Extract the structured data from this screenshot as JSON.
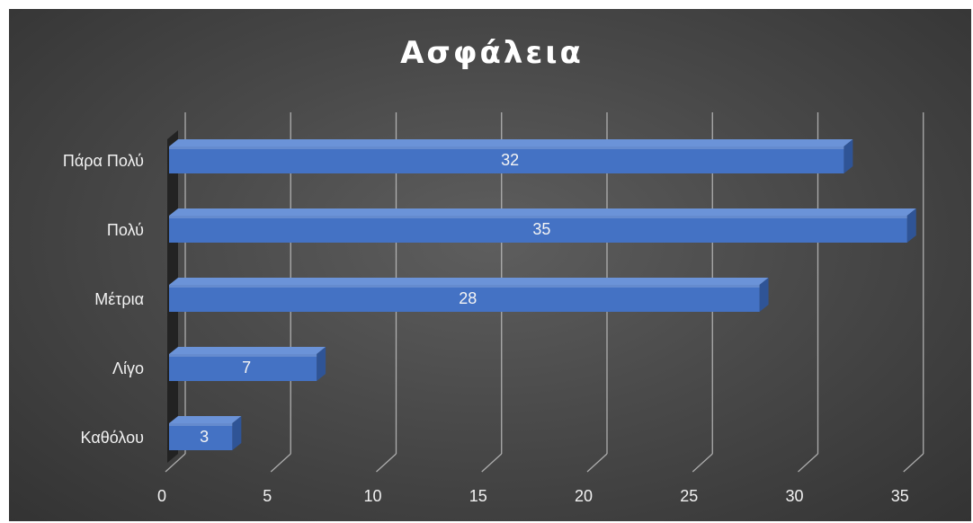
{
  "chart_data": {
    "type": "bar",
    "orientation": "horizontal",
    "title": "Ασφάλεια",
    "xlabel": "",
    "ylabel": "",
    "categories": [
      "Πάρα Πολύ",
      "Πολύ",
      "Μέτρια",
      "Λίγο",
      "Καθόλου"
    ],
    "values": [
      32,
      35,
      28,
      7,
      3
    ],
    "xlim": [
      0,
      35
    ],
    "xticks": [
      "0",
      "5",
      "10",
      "15",
      "20",
      "25",
      "30",
      "35"
    ],
    "grid": true,
    "legend": "none",
    "data_labels": true
  },
  "colors": {
    "bar_front": "#4472c4",
    "bar_top": "#6b93d8",
    "bar_side": "#2f5496",
    "background": "#454545",
    "gridline": "#bfbfbf",
    "text": "#f2f2f2"
  }
}
